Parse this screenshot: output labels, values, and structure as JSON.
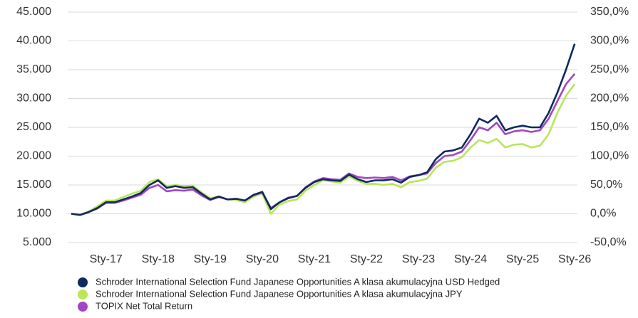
{
  "chart_data": {
    "type": "line",
    "categories": [
      null,
      null,
      null,
      null,
      "Sty-17",
      null,
      null,
      null,
      null,
      null,
      "Sty-18",
      null,
      null,
      null,
      null,
      null,
      "Sty-19",
      null,
      null,
      null,
      null,
      null,
      "Sty-20",
      null,
      null,
      null,
      null,
      null,
      "Sty-21",
      null,
      null,
      null,
      null,
      null,
      "Sty-22",
      null,
      null,
      null,
      null,
      null,
      "Sty-23",
      null,
      null,
      null,
      null,
      null,
      "Sty-24",
      null,
      null,
      null,
      null,
      null,
      "Sty-25",
      null,
      null,
      null,
      null,
      null,
      "Sty-26"
    ],
    "series": [
      {
        "name": "Schroder International Selection Fund Japanese Opportunities A klasa akumulacyjna USD Hedged",
        "color": "#0d2a5c",
        "values": [
          10000,
          9800,
          10300,
          11000,
          12000,
          12000,
          12500,
          13000,
          13600,
          15000,
          15800,
          14500,
          14800,
          14500,
          14600,
          13500,
          12500,
          13000,
          12500,
          12600,
          12300,
          13300,
          13800,
          10800,
          12000,
          12700,
          13100,
          14500,
          15500,
          16000,
          15800,
          15700,
          16800,
          16000,
          15500,
          15800,
          15800,
          16000,
          15400,
          16400,
          16700,
          17200,
          19500,
          20800,
          21000,
          21500,
          23800,
          26500,
          25800,
          27000,
          24500,
          25000,
          25300,
          25000,
          25000,
          27500,
          31000,
          35000,
          39500
        ]
      },
      {
        "name": "Schroder International Selection Fund Japanese Opportunities A klasa akumulacyjna JPY",
        "color": "#b9e65a",
        "values": [
          10000,
          9800,
          10400,
          11300,
          12300,
          12300,
          12900,
          13500,
          14000,
          15500,
          16000,
          14800,
          15000,
          14800,
          14900,
          13700,
          12700,
          13000,
          12500,
          12400,
          12000,
          13000,
          13500,
          10000,
          11600,
          12200,
          12500,
          14000,
          15000,
          15800,
          15600,
          15400,
          16500,
          15700,
          15200,
          15200,
          15000,
          15200,
          14600,
          15500,
          15700,
          16100,
          18000,
          19000,
          19200,
          19800,
          21500,
          22800,
          22300,
          23000,
          21500,
          22000,
          22100,
          21500,
          21800,
          23800,
          27500,
          30500,
          32500
        ]
      },
      {
        "name": "TOPIX Net Total Return",
        "color": "#a146c2",
        "values": [
          10000,
          9800,
          10300,
          10900,
          11900,
          11900,
          12300,
          12800,
          13300,
          14500,
          15000,
          13900,
          14100,
          14000,
          14200,
          13200,
          12400,
          12900,
          12500,
          12600,
          12300,
          13200,
          13700,
          11000,
          12000,
          12800,
          13100,
          14600,
          15600,
          16200,
          16000,
          15900,
          17000,
          16400,
          16200,
          16300,
          16200,
          16400,
          15800,
          16500,
          16700,
          17000,
          18800,
          20000,
          20200,
          20800,
          22800,
          25000,
          24500,
          25800,
          23800,
          24300,
          24500,
          24200,
          24500,
          26500,
          29500,
          32500,
          34300
        ]
      }
    ],
    "ylim": [
      5000,
      45000
    ],
    "yticks": [
      {
        "value": 5000,
        "label": "5.000"
      },
      {
        "value": 10000,
        "label": "10.000"
      },
      {
        "value": 15000,
        "label": "15.000"
      },
      {
        "value": 20000,
        "label": "20.000"
      },
      {
        "value": 25000,
        "label": "25.000"
      },
      {
        "value": 30000,
        "label": "30.000"
      },
      {
        "value": 35000,
        "label": "35.000"
      },
      {
        "value": 40000,
        "label": "40.000"
      },
      {
        "value": 45000,
        "label": "45.000"
      }
    ],
    "y2lim": [
      -50,
      350
    ],
    "y2ticks": [
      {
        "value": -50,
        "label": "-50,0%"
      },
      {
        "value": 0,
        "label": "0,0%"
      },
      {
        "value": 50,
        "label": "50,0%"
      },
      {
        "value": 100,
        "label": "100,0%"
      },
      {
        "value": 150,
        "label": "150,0%"
      },
      {
        "value": 200,
        "label": "200,0%"
      },
      {
        "value": 250,
        "label": "250,0%"
      },
      {
        "value": 300,
        "label": "300,0%"
      },
      {
        "value": 350,
        "label": "350,0%"
      }
    ],
    "grid": true
  }
}
